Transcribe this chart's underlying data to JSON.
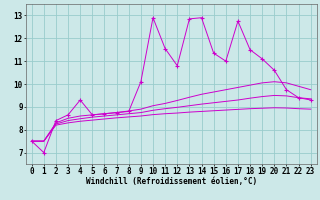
{
  "xlabel": "Windchill (Refroidissement éolien,°C)",
  "bg_color": "#cce8e8",
  "grid_color": "#99cccc",
  "line_color": "#cc00cc",
  "xlim": [
    -0.5,
    23.5
  ],
  "ylim": [
    6.5,
    13.5
  ],
  "xticks": [
    0,
    1,
    2,
    3,
    4,
    5,
    6,
    7,
    8,
    9,
    10,
    11,
    12,
    13,
    14,
    15,
    16,
    17,
    18,
    19,
    20,
    21,
    22,
    23
  ],
  "yticks": [
    7,
    8,
    9,
    10,
    11,
    12,
    13
  ],
  "line_jagged": [
    7.5,
    7.0,
    8.4,
    8.65,
    9.3,
    8.65,
    8.7,
    8.75,
    8.8,
    10.1,
    12.9,
    11.55,
    10.8,
    12.85,
    12.9,
    11.35,
    11.0,
    12.75,
    11.5,
    11.1,
    10.6,
    9.75,
    9.4,
    9.3
  ],
  "line_upper": [
    7.5,
    7.5,
    8.3,
    8.5,
    8.6,
    8.65,
    8.7,
    8.75,
    8.82,
    8.9,
    9.05,
    9.15,
    9.28,
    9.42,
    9.55,
    9.65,
    9.75,
    9.85,
    9.95,
    10.05,
    10.1,
    10.05,
    9.9,
    9.75
  ],
  "line_mid": [
    7.5,
    7.5,
    8.25,
    8.4,
    8.48,
    8.55,
    8.6,
    8.65,
    8.7,
    8.75,
    8.85,
    8.92,
    8.98,
    9.05,
    9.12,
    9.18,
    9.24,
    9.3,
    9.38,
    9.45,
    9.5,
    9.48,
    9.4,
    9.35
  ],
  "line_lower": [
    7.5,
    7.5,
    8.2,
    8.3,
    8.37,
    8.42,
    8.47,
    8.52,
    8.56,
    8.6,
    8.66,
    8.7,
    8.73,
    8.77,
    8.8,
    8.83,
    8.86,
    8.89,
    8.92,
    8.94,
    8.96,
    8.95,
    8.92,
    8.9
  ]
}
